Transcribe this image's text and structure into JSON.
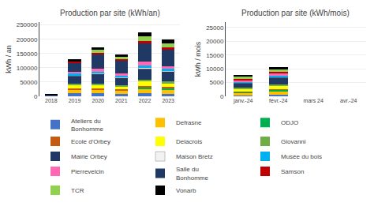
{
  "chart_data": [
    {
      "type": "bar",
      "stacked": true,
      "grid": true,
      "title": "Production par site (kWh/an)",
      "ylabel": "kWh / an",
      "categories": [
        "2018",
        "2019",
        "2020",
        "2021",
        "2022",
        "2023"
      ],
      "ylim": [
        0,
        260000
      ],
      "yticks": [
        0,
        50000,
        100000,
        150000,
        200000,
        250000
      ],
      "series": [
        {
          "name": "Ateliers du\nBonhomme",
          "color": "#4472c4",
          "values": [
            3000,
            10000,
            10000,
            9000,
            10000,
            9000
          ]
        },
        {
          "name": "Defrasne",
          "color": "#ffc000",
          "values": [
            0,
            13000,
            14000,
            12000,
            17000,
            15000
          ]
        },
        {
          "name": "ODJO",
          "color": "#00b050",
          "values": [
            0,
            0,
            0,
            0,
            5000,
            5000
          ]
        },
        {
          "name": "Ecole d'Orbey",
          "color": "#c55a11",
          "values": [
            0,
            4000,
            3500,
            3000,
            4500,
            4000
          ]
        },
        {
          "name": "Delacrois",
          "color": "#ffff00",
          "values": [
            0,
            12000,
            13000,
            11000,
            16000,
            14000
          ]
        },
        {
          "name": "Giovanni",
          "color": "#70ad47",
          "values": [
            0,
            4000,
            5000,
            4000,
            6000,
            5000
          ]
        },
        {
          "name": "Mairie Orbey",
          "color": "#1f3864",
          "values": [
            0,
            28000,
            32000,
            26000,
            38000,
            34000
          ]
        },
        {
          "name": "Maison Bretz",
          "color": "#f2f2f2",
          "values": [
            0,
            3000,
            3000,
            2500,
            4000,
            3500
          ]
        },
        {
          "name": "Musée du bois",
          "color": "#00b0f0",
          "values": [
            0,
            5000,
            6000,
            5000,
            8000,
            7000
          ]
        },
        {
          "name": "Pierrevelcin",
          "color": "#ff69b4",
          "values": [
            0,
            6000,
            9000,
            7000,
            12000,
            10000
          ]
        },
        {
          "name": "Salle du\nBonhomme",
          "color": "#203864",
          "values": [
            0,
            32000,
            50000,
            44000,
            65000,
            58000
          ]
        },
        {
          "name": "Samson",
          "color": "#c00000",
          "values": [
            0,
            6000,
            7000,
            6000,
            9000,
            8000
          ]
        },
        {
          "name": "TCR",
          "color": "#92d050",
          "values": [
            0,
            0,
            11000,
            10000,
            16000,
            14000
          ]
        },
        {
          "name": "Vonarb",
          "color": "#000000",
          "values": [
            3000,
            7000,
            9000,
            8000,
            14000,
            12000
          ]
        }
      ]
    },
    {
      "type": "bar",
      "stacked": true,
      "grid": true,
      "title": "Production par site (kWh/mois)",
      "ylabel": "kWh / mois",
      "categories": [
        "janv.-24",
        "févr.-24",
        "mars 24",
        "avr.-24"
      ],
      "ylim": [
        0,
        27000
      ],
      "yticks": [
        0,
        5000,
        10000,
        15000,
        20000,
        25000
      ],
      "series": [
        {
          "name": "Ateliers du\nBonhomme",
          "color": "#4472c4",
          "values": [
            400,
            550,
            0,
            0
          ]
        },
        {
          "name": "Defrasne",
          "color": "#ffc000",
          "values": [
            900,
            1300,
            0,
            0
          ]
        },
        {
          "name": "ODJO",
          "color": "#00b050",
          "values": [
            300,
            450,
            0,
            0
          ]
        },
        {
          "name": "Ecole d'Orbey",
          "color": "#c55a11",
          "values": [
            250,
            320,
            0,
            0
          ]
        },
        {
          "name": "Delacrois",
          "color": "#ffff00",
          "values": [
            900,
            1300,
            0,
            0
          ]
        },
        {
          "name": "Giovanni",
          "color": "#70ad47",
          "values": [
            300,
            380,
            0,
            0
          ]
        },
        {
          "name": "Mairie Orbey",
          "color": "#1f3864",
          "values": [
            1800,
            2500,
            0,
            0
          ]
        },
        {
          "name": "Maison Bretz",
          "color": "#f2f2f2",
          "values": [
            150,
            220,
            0,
            0
          ]
        },
        {
          "name": "Musée du bois",
          "color": "#00b0f0",
          "values": [
            350,
            480,
            0,
            0
          ]
        },
        {
          "name": "Pierrevelcin",
          "color": "#ff69b4",
          "values": [
            550,
            750,
            0,
            0
          ]
        },
        {
          "name": "Salle du\nBonhomme",
          "color": "#203864",
          "values": [
            0,
            0,
            0,
            0
          ]
        },
        {
          "name": "Samson",
          "color": "#c00000",
          "values": [
            450,
            650,
            0,
            0
          ]
        },
        {
          "name": "TCR",
          "color": "#92d050",
          "values": [
            850,
            1100,
            0,
            0
          ]
        },
        {
          "name": "Vonarb",
          "color": "#000000",
          "values": [
            350,
            550,
            0,
            0
          ]
        }
      ]
    }
  ]
}
